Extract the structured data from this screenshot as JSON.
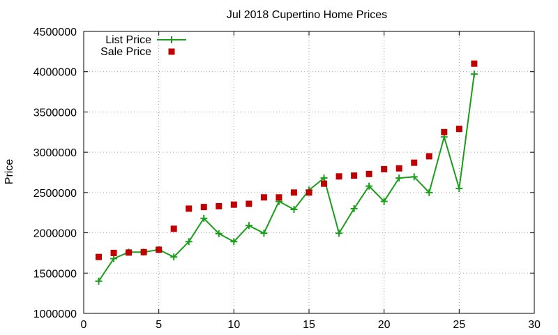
{
  "chart_data": {
    "type": "line",
    "title": "Jul 2018 Cupertino Home Prices",
    "xlabel": "",
    "ylabel": "Price",
    "xlim": [
      0,
      30
    ],
    "ylim": [
      1000000,
      4500000
    ],
    "x_ticks": [
      0,
      5,
      10,
      15,
      20,
      25,
      30
    ],
    "y_ticks": [
      1000000,
      1500000,
      2000000,
      2500000,
      3000000,
      3500000,
      4000000,
      4500000
    ],
    "grid": true,
    "legend_position": "top-left",
    "series": [
      {
        "name": "List Price",
        "style": "line-with-plus-markers",
        "color": "#1a9e1a",
        "x": [
          1,
          2,
          3,
          4,
          5,
          6,
          7,
          8,
          9,
          10,
          11,
          12,
          13,
          14,
          15,
          16,
          17,
          18,
          19,
          20,
          21,
          22,
          23,
          24,
          25,
          26
        ],
        "y": [
          1400000,
          1680000,
          1760000,
          1760000,
          1790000,
          1700000,
          1890000,
          2180000,
          1990000,
          1890000,
          2090000,
          1995000,
          2390000,
          2290000,
          2530000,
          2680000,
          1995000,
          2300000,
          2580000,
          2390000,
          2680000,
          2695000,
          2500000,
          3190000,
          2550000,
          3970000
        ]
      },
      {
        "name": "Sale Price",
        "style": "square-markers",
        "color": "#c00000",
        "x": [
          1,
          2,
          3,
          4,
          5,
          6,
          7,
          8,
          9,
          10,
          11,
          12,
          13,
          14,
          15,
          16,
          17,
          18,
          19,
          20,
          21,
          22,
          23,
          24,
          25,
          26
        ],
        "y": [
          1700000,
          1750000,
          1755000,
          1760000,
          1790000,
          2050000,
          2300000,
          2320000,
          2330000,
          2350000,
          2360000,
          2440000,
          2440000,
          2500000,
          2500000,
          2610000,
          2700000,
          2710000,
          2730000,
          2790000,
          2800000,
          2870000,
          2950000,
          3250000,
          3290000,
          4100000
        ]
      }
    ]
  }
}
